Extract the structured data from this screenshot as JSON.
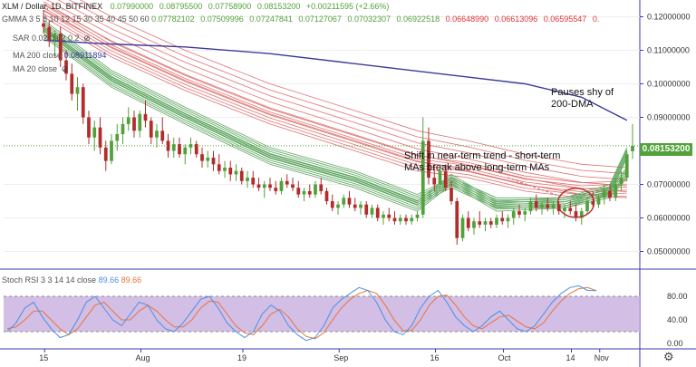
{
  "header": {
    "symbol": "XLM / Dollar",
    "interval": "1D",
    "exchange": "BITFINEX",
    "ohlc_values": [
      "0.07990000",
      "0.08795500",
      "0.07758900",
      "0.08153200",
      "+0.00211595 (+2.66%)"
    ]
  },
  "legends": {
    "gmma_label": "GMMA 3 5 8 10 12 15 30 35 40 45 50 60",
    "gmma_values": [
      "0.07782102",
      "0.07509996",
      "0.07247841",
      "0.07127067",
      "0.07032307",
      "0.06922518",
      "0.06648990",
      "0.06613096",
      "0.06595547",
      "0."
    ],
    "sar_label": "SAR 0.02 0.02 0.2",
    "ma_label": "MA 200 close",
    "ma_value": "0.08911894",
    "ma2_label": "MA 20 close"
  },
  "annotations": {
    "dma_note": [
      "Pauses shy of",
      "200-DMA"
    ],
    "trend_note": [
      "Shift in near-term trend - short-term",
      "MAs break above long-term MAs"
    ]
  },
  "price_label": "0.08153200",
  "rsi_legend": {
    "label": "Stoch RSI 3 3 14 14 close",
    "k": "89.66",
    "d": "89.66"
  },
  "colors": {
    "up": "#53a13b",
    "down": "#b22c2c",
    "ma200": "#3a3a9a",
    "gmma_short": "#58a35a",
    "gmma_long": "#e07070",
    "sar": "#5555aa",
    "stoch_k": "#4a90e2",
    "stoch_d": "#e8733c",
    "rsi_band": "#cbb3e0",
    "price_bg": "#53a13b"
  },
  "chart_data": {
    "type": "candlestick",
    "title": "XLM / Dollar, 1D, BITFINEX",
    "price_axis": {
      "min": 0.045,
      "max": 0.125,
      "ticks": [
        "0.12000000",
        "0.11000000",
        "0.10000000",
        "0.09000000",
        "0.07000000",
        "0.06000000",
        "0.05000000"
      ]
    },
    "x_ticks": [
      "15",
      "Aug",
      "19",
      "Sep",
      "16",
      "Oct",
      "14",
      "Nov"
    ],
    "candles": [
      [
        0.118,
        0.122,
        0.115,
        0.117
      ],
      [
        0.117,
        0.119,
        0.111,
        0.113
      ],
      [
        0.113,
        0.116,
        0.108,
        0.115
      ],
      [
        0.115,
        0.117,
        0.105,
        0.107
      ],
      [
        0.107,
        0.11,
        0.101,
        0.103
      ],
      [
        0.103,
        0.106,
        0.095,
        0.097
      ],
      [
        0.097,
        0.102,
        0.092,
        0.099
      ],
      [
        0.099,
        0.1,
        0.088,
        0.09
      ],
      [
        0.09,
        0.092,
        0.082,
        0.084
      ],
      [
        0.084,
        0.089,
        0.08,
        0.087
      ],
      [
        0.087,
        0.09,
        0.079,
        0.081
      ],
      [
        0.081,
        0.083,
        0.074,
        0.077
      ],
      [
        0.077,
        0.085,
        0.076,
        0.083
      ],
      [
        0.083,
        0.088,
        0.08,
        0.085
      ],
      [
        0.085,
        0.09,
        0.082,
        0.088
      ],
      [
        0.088,
        0.093,
        0.086,
        0.09
      ],
      [
        0.09,
        0.092,
        0.084,
        0.086
      ],
      [
        0.086,
        0.092,
        0.084,
        0.091
      ],
      [
        0.091,
        0.095,
        0.087,
        0.089
      ],
      [
        0.089,
        0.09,
        0.082,
        0.084
      ],
      [
        0.084,
        0.088,
        0.081,
        0.086
      ],
      [
        0.086,
        0.09,
        0.082,
        0.083
      ],
      [
        0.083,
        0.085,
        0.078,
        0.08
      ],
      [
        0.08,
        0.084,
        0.078,
        0.082
      ],
      [
        0.082,
        0.084,
        0.078,
        0.079
      ],
      [
        0.079,
        0.082,
        0.076,
        0.081
      ],
      [
        0.081,
        0.084,
        0.079,
        0.082
      ],
      [
        0.082,
        0.083,
        0.078,
        0.079
      ],
      [
        0.079,
        0.081,
        0.075,
        0.077
      ],
      [
        0.077,
        0.08,
        0.075,
        0.078
      ],
      [
        0.078,
        0.08,
        0.074,
        0.076
      ],
      [
        0.076,
        0.079,
        0.073,
        0.074
      ],
      [
        0.074,
        0.077,
        0.072,
        0.075
      ],
      [
        0.075,
        0.077,
        0.071,
        0.073
      ],
      [
        0.073,
        0.076,
        0.071,
        0.074
      ],
      [
        0.074,
        0.075,
        0.07,
        0.071
      ],
      [
        0.071,
        0.074,
        0.069,
        0.072
      ],
      [
        0.072,
        0.074,
        0.069,
        0.07
      ],
      [
        0.07,
        0.072,
        0.068,
        0.069
      ],
      [
        0.069,
        0.071,
        0.066,
        0.07
      ],
      [
        0.07,
        0.072,
        0.068,
        0.069
      ],
      [
        0.069,
        0.071,
        0.067,
        0.068
      ],
      [
        0.068,
        0.072,
        0.067,
        0.071
      ],
      [
        0.071,
        0.073,
        0.069,
        0.07
      ],
      [
        0.07,
        0.072,
        0.068,
        0.069
      ],
      [
        0.069,
        0.071,
        0.066,
        0.067
      ],
      [
        0.067,
        0.069,
        0.065,
        0.068
      ],
      [
        0.068,
        0.07,
        0.066,
        0.067
      ],
      [
        0.067,
        0.071,
        0.066,
        0.07
      ],
      [
        0.07,
        0.072,
        0.067,
        0.068
      ],
      [
        0.068,
        0.069,
        0.064,
        0.065
      ],
      [
        0.065,
        0.067,
        0.062,
        0.063
      ],
      [
        0.063,
        0.065,
        0.061,
        0.064
      ],
      [
        0.064,
        0.067,
        0.063,
        0.066
      ],
      [
        0.066,
        0.068,
        0.063,
        0.064
      ],
      [
        0.064,
        0.066,
        0.062,
        0.063
      ],
      [
        0.063,
        0.065,
        0.061,
        0.064
      ],
      [
        0.064,
        0.065,
        0.06,
        0.061
      ],
      [
        0.061,
        0.064,
        0.06,
        0.063
      ],
      [
        0.063,
        0.064,
        0.059,
        0.06
      ],
      [
        0.06,
        0.062,
        0.058,
        0.061
      ],
      [
        0.061,
        0.063,
        0.059,
        0.06
      ],
      [
        0.06,
        0.062,
        0.058,
        0.059
      ],
      [
        0.059,
        0.061,
        0.058,
        0.06
      ],
      [
        0.06,
        0.061,
        0.058,
        0.059
      ],
      [
        0.059,
        0.061,
        0.058,
        0.06
      ],
      [
        0.06,
        0.062,
        0.059,
        0.061
      ],
      [
        0.061,
        0.09,
        0.06,
        0.083
      ],
      [
        0.083,
        0.087,
        0.07,
        0.072
      ],
      [
        0.072,
        0.076,
        0.068,
        0.07
      ],
      [
        0.07,
        0.075,
        0.068,
        0.074
      ],
      [
        0.074,
        0.076,
        0.068,
        0.069
      ],
      [
        0.069,
        0.071,
        0.064,
        0.065
      ],
      [
        0.065,
        0.066,
        0.052,
        0.054
      ],
      [
        0.054,
        0.061,
        0.053,
        0.06
      ],
      [
        0.06,
        0.062,
        0.056,
        0.057
      ],
      [
        0.057,
        0.06,
        0.055,
        0.059
      ],
      [
        0.059,
        0.062,
        0.057,
        0.058
      ],
      [
        0.058,
        0.06,
        0.056,
        0.059
      ],
      [
        0.059,
        0.06,
        0.057,
        0.058
      ],
      [
        0.058,
        0.061,
        0.057,
        0.06
      ],
      [
        0.06,
        0.062,
        0.058,
        0.059
      ],
      [
        0.059,
        0.061,
        0.057,
        0.06
      ],
      [
        0.06,
        0.063,
        0.058,
        0.062
      ],
      [
        0.062,
        0.064,
        0.06,
        0.061
      ],
      [
        0.061,
        0.063,
        0.059,
        0.062
      ],
      [
        0.062,
        0.066,
        0.061,
        0.065
      ],
      [
        0.065,
        0.067,
        0.062,
        0.063
      ],
      [
        0.063,
        0.065,
        0.061,
        0.064
      ],
      [
        0.064,
        0.066,
        0.062,
        0.063
      ],
      [
        0.063,
        0.065,
        0.061,
        0.064
      ],
      [
        0.064,
        0.065,
        0.061,
        0.062
      ],
      [
        0.062,
        0.064,
        0.06,
        0.063
      ],
      [
        0.063,
        0.065,
        0.061,
        0.062
      ],
      [
        0.062,
        0.064,
        0.059,
        0.06
      ],
      [
        0.06,
        0.063,
        0.058,
        0.062
      ],
      [
        0.062,
        0.066,
        0.061,
        0.065
      ],
      [
        0.065,
        0.068,
        0.063,
        0.064
      ],
      [
        0.064,
        0.067,
        0.063,
        0.066
      ],
      [
        0.066,
        0.07,
        0.064,
        0.068
      ],
      [
        0.068,
        0.07,
        0.065,
        0.066
      ],
      [
        0.066,
        0.072,
        0.065,
        0.07
      ],
      [
        0.07,
        0.074,
        0.068,
        0.072
      ],
      [
        0.072,
        0.08,
        0.071,
        0.079
      ],
      [
        0.0799,
        0.088,
        0.0776,
        0.0815
      ]
    ],
    "ma200": [
      [
        0,
        0.113
      ],
      [
        10,
        0.112
      ],
      [
        25,
        0.111
      ],
      [
        40,
        0.109
      ],
      [
        55,
        0.106
      ],
      [
        70,
        0.103
      ],
      [
        85,
        0.1
      ],
      [
        95,
        0.096
      ],
      [
        103,
        0.0891
      ]
    ],
    "gmma_short_levels": [
      [
        [
          0,
          0.114
        ],
        [
          12,
          0.099
        ],
        [
          25,
          0.088
        ],
        [
          40,
          0.076
        ],
        [
          55,
          0.069
        ],
        [
          66,
          0.062
        ],
        [
          72,
          0.07
        ],
        [
          80,
          0.062
        ],
        [
          92,
          0.063
        ],
        [
          100,
          0.067
        ],
        [
          103,
          0.078
        ]
      ],
      [
        [
          0,
          0.116
        ],
        [
          12,
          0.101
        ],
        [
          25,
          0.09
        ],
        [
          40,
          0.078
        ],
        [
          55,
          0.071
        ],
        [
          66,
          0.064
        ],
        [
          72,
          0.069
        ],
        [
          80,
          0.063
        ],
        [
          92,
          0.063
        ],
        [
          100,
          0.066
        ],
        [
          103,
          0.072
        ]
      ]
    ],
    "gmma_long_levels": [
      [
        [
          0,
          0.12
        ],
        [
          12,
          0.108
        ],
        [
          25,
          0.098
        ],
        [
          40,
          0.088
        ],
        [
          55,
          0.08
        ],
        [
          66,
          0.074
        ],
        [
          75,
          0.072
        ],
        [
          85,
          0.068
        ],
        [
          95,
          0.066
        ],
        [
          103,
          0.0665
        ]
      ],
      [
        [
          0,
          0.122
        ],
        [
          12,
          0.111
        ],
        [
          25,
          0.101
        ],
        [
          40,
          0.091
        ],
        [
          55,
          0.083
        ],
        [
          66,
          0.077
        ],
        [
          75,
          0.074
        ],
        [
          85,
          0.07
        ],
        [
          95,
          0.067
        ],
        [
          103,
          0.066
        ]
      ]
    ],
    "stoch_rsi": {
      "k": [
        20,
        35,
        60,
        70,
        45,
        25,
        10,
        15,
        40,
        70,
        80,
        60,
        40,
        30,
        50,
        70,
        65,
        40,
        25,
        20,
        35,
        55,
        75,
        80,
        60,
        35,
        20,
        10,
        20,
        50,
        65,
        55,
        30,
        15,
        5,
        10,
        30,
        60,
        75,
        85,
        95,
        90,
        70,
        40,
        20,
        15,
        30,
        60,
        80,
        90,
        70,
        45,
        30,
        20,
        30,
        45,
        55,
        40,
        25,
        20,
        30,
        50,
        70,
        85,
        95,
        98,
        90,
        89.66
      ],
      "d": [
        25,
        28,
        40,
        55,
        55,
        40,
        25,
        15,
        25,
        45,
        65,
        70,
        55,
        40,
        40,
        55,
        65,
        55,
        40,
        28,
        28,
        40,
        60,
        72,
        70,
        50,
        30,
        18,
        15,
        30,
        50,
        58,
        45,
        25,
        12,
        8,
        18,
        40,
        60,
        75,
        85,
        90,
        85,
        65,
        40,
        22,
        22,
        40,
        65,
        80,
        82,
        65,
        45,
        30,
        25,
        35,
        45,
        48,
        38,
        28,
        25,
        35,
        55,
        72,
        85,
        93,
        95,
        89.66
      ],
      "bands": [
        20,
        80
      ],
      "ticks": [
        "80.00",
        "40.00",
        "0.00"
      ]
    }
  }
}
